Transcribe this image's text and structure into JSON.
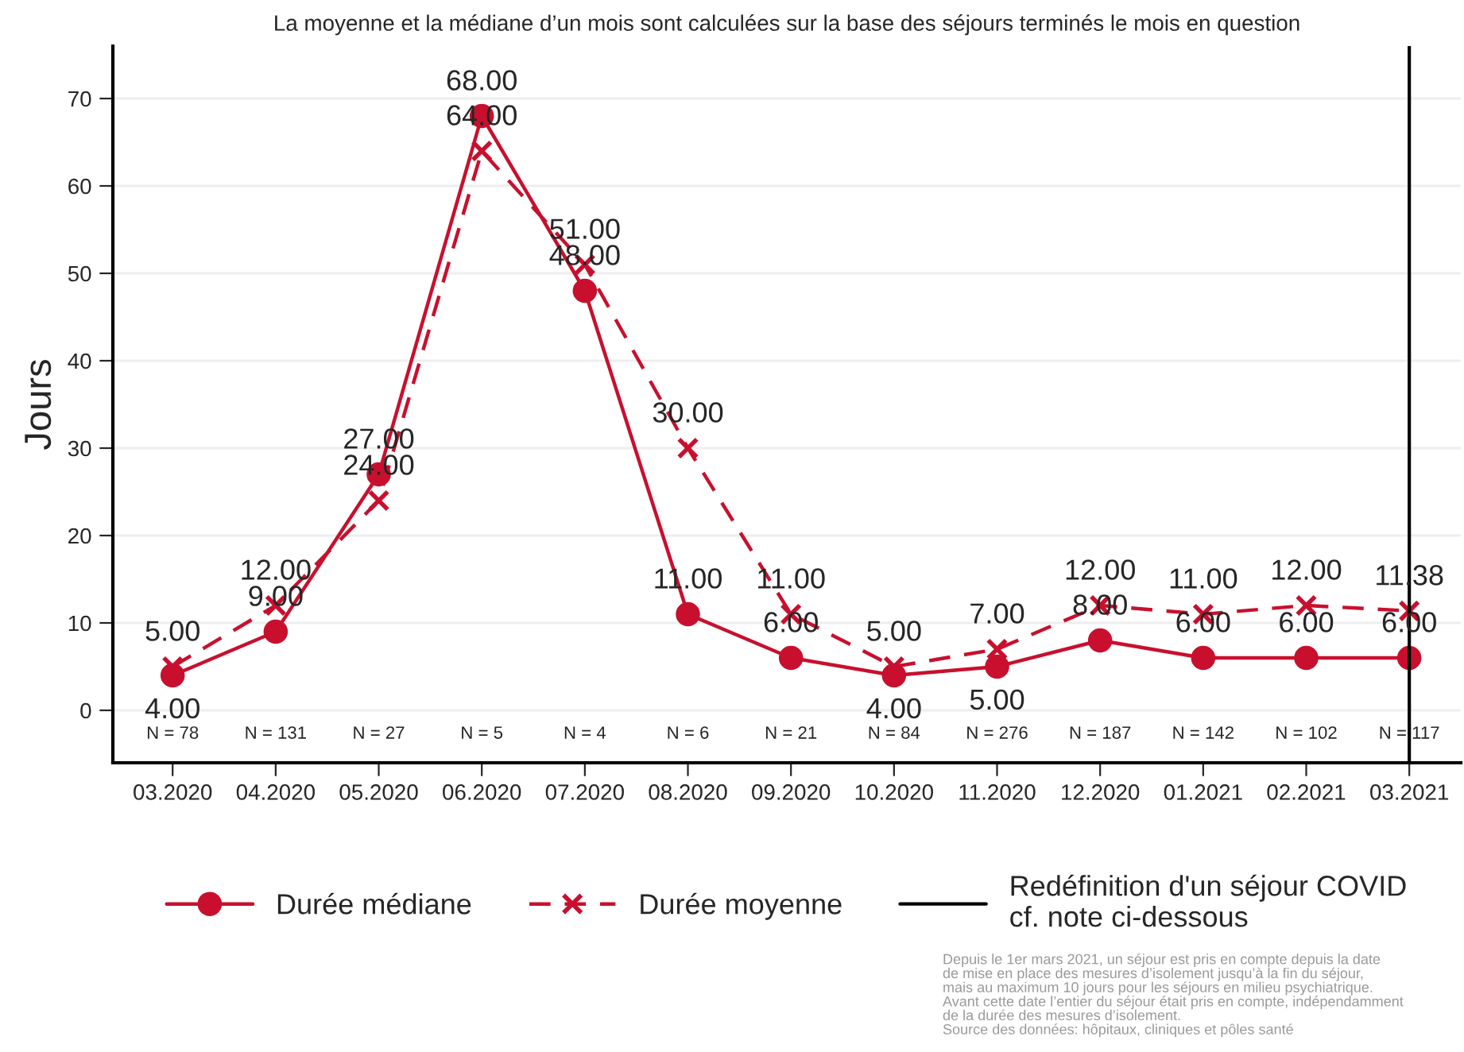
{
  "chart_data": {
    "type": "line",
    "title": "La moyenne et la médiane d’un mois sont calculées sur la base des séjours terminés le mois en question",
    "ylabel": "Jours",
    "categories": [
      "03.2020",
      "04.2020",
      "05.2020",
      "06.2020",
      "07.2020",
      "08.2020",
      "09.2020",
      "10.2020",
      "11.2020",
      "12.2020",
      "01.2021",
      "02.2021",
      "03.2021"
    ],
    "series": [
      {
        "name": "Durée médiane",
        "color": "#c8102e",
        "marker": "circle",
        "line_style": "solid",
        "values": [
          4,
          9,
          27,
          68,
          48,
          11,
          6,
          4,
          5,
          8,
          6,
          6,
          6
        ],
        "value_labels": [
          "4.00",
          "9.00",
          "27.00",
          "68.00",
          "48.00",
          "11.00",
          "6.00",
          "4.00",
          "5.00",
          "8.00",
          "6.00",
          "6.00",
          "6.00"
        ]
      },
      {
        "name": "Durée moyenne",
        "color": "#c8102e",
        "marker": "cross",
        "line_style": "dashed",
        "values": [
          5,
          12,
          24,
          64,
          51,
          30,
          11,
          5,
          7,
          12,
          11,
          12,
          11.38
        ],
        "value_labels": [
          "5.00",
          "12.00",
          "24.00",
          "64.00",
          "51.00",
          "30.00",
          "11.00",
          "5.00",
          "7.00",
          "12.00",
          "11.00",
          "12.00",
          "11.38"
        ]
      }
    ],
    "ylim": [
      -6,
      76
    ],
    "yticks": [
      0,
      10,
      20,
      30,
      40,
      50,
      60,
      70
    ],
    "grid": "y",
    "legend": "bottom",
    "ref_lines": [
      {
        "axis": "x",
        "value": "03.2021",
        "label": "Redéfinition d'un séjour COVID\ncf. note ci-dessous",
        "color": "#000000",
        "line_style": "solid"
      }
    ],
    "annotations": [
      "N = 78",
      "N = 131",
      "N = 27",
      "N = 5",
      "N = 4",
      "N = 6",
      "N = 21",
      "N = 84",
      "N = 276",
      "N = 187",
      "N = 142",
      "N = 102",
      "N = 117",
      "Depuis le 1er mars 2021, un séjour est pris en compte depuis la date\nde mise en place des mesures d’isolement jusqu’à la fin du séjour,\nmais au maximum 10 jours pour les séjours en milieu psychiatrique.\nAvant cette date l’entier du séjour était pris en compte, indépendamment\nde la durée des mesures d’isolement.\nSource des données: hôpitaux, cliniques et pôles santé"
    ]
  }
}
